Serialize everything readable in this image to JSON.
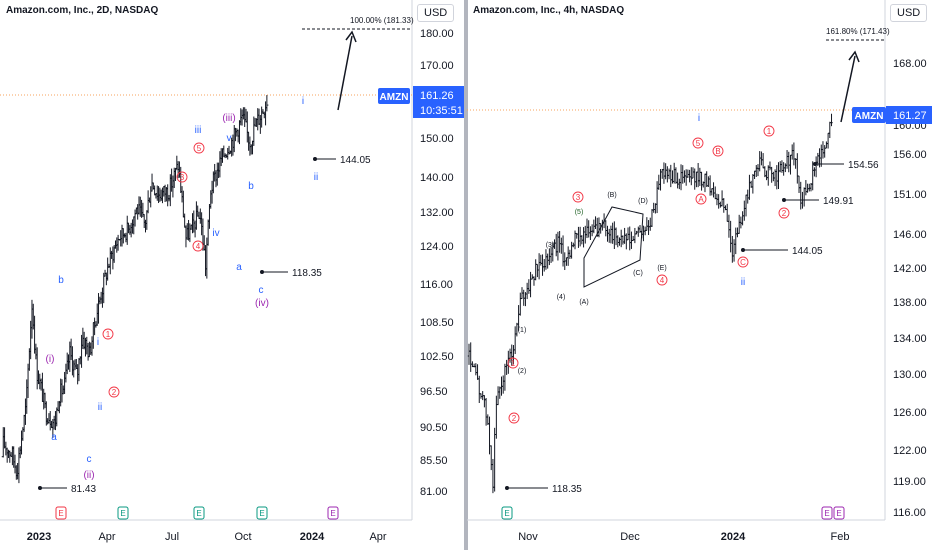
{
  "chart_data": [
    {
      "type": "ohlc",
      "title": "Amazon.com, Inc., 2D, NASDAQ",
      "currency": "USD",
      "ticker": "AMZN",
      "last_price": "161.26",
      "countdown": "10:35:51",
      "y_ticks": [
        "180.00",
        "170.00",
        "160.00",
        "150.00",
        "140.00",
        "132.00",
        "124.00",
        "116.00",
        "108.50",
        "102.50",
        "96.50",
        "90.50",
        "85.50",
        "81.00"
      ],
      "x_ticks": [
        "2023",
        "Apr",
        "Jul",
        "Oct",
        "2024",
        "Apr"
      ],
      "target_label": "100.00% (181.33)",
      "waves": [
        "a",
        "b",
        "c",
        "(i)",
        "(ii)",
        "i",
        "ii",
        "iii",
        "iv",
        "v",
        "(iii)",
        "(iv)",
        "a",
        "b",
        "c",
        "i",
        "ii",
        "1",
        "2",
        "3",
        "4",
        "5"
      ],
      "levels": [
        "81.43",
        "118.35",
        "144.05"
      ],
      "close_path": [
        [
          "2023-01-03",
          86
        ],
        [
          "2023-01-10",
          84
        ],
        [
          "2023-01-17",
          89
        ],
        [
          "2023-01-24",
          94
        ],
        [
          "2023-02-02",
          112
        ],
        [
          "2023-02-09",
          100
        ],
        [
          "2023-02-16",
          97
        ],
        [
          "2023-02-23",
          93
        ],
        [
          "2023-03-02",
          92
        ],
        [
          "2023-03-09",
          91
        ],
        [
          "2023-03-16",
          96
        ],
        [
          "2023-03-23",
          97
        ],
        [
          "2023-04-01",
          103
        ],
        [
          "2023-04-12",
          99
        ],
        [
          "2023-04-20",
          106
        ],
        [
          "2023-05-01",
          103
        ],
        [
          "2023-05-15",
          112
        ],
        [
          "2023-05-30",
          120
        ],
        [
          "2023-06-15",
          126
        ],
        [
          "2023-06-30",
          128
        ],
        [
          "2023-07-13",
          133
        ],
        [
          "2023-07-25",
          129
        ],
        [
          "2023-08-04",
          139
        ],
        [
          "2023-08-15",
          136
        ],
        [
          "2023-08-31",
          137
        ],
        [
          "2023-09-14",
          143
        ],
        [
          "2023-09-26",
          126
        ],
        [
          "2023-10-05",
          128
        ],
        [
          "2023-10-17",
          132
        ],
        [
          "2023-10-26",
          120
        ],
        [
          "2023-11-03",
          137
        ],
        [
          "2023-11-20",
          145
        ],
        [
          "2023-12-08",
          150
        ],
        [
          "2023-12-21",
          155
        ],
        [
          "2024-01-02",
          149
        ],
        [
          "2024-01-10",
          153
        ],
        [
          "2024-01-22",
          157
        ],
        [
          "2024-01-29",
          160
        ]
      ]
    },
    {
      "type": "ohlc",
      "title": "Amazon.com, Inc., 4h, NASDAQ",
      "currency": "USD",
      "ticker": "AMZN",
      "last_price": "161.27",
      "y_ticks": [
        "168.00",
        "160.00",
        "156.00",
        "151.00",
        "146.00",
        "142.00",
        "138.00",
        "134.00",
        "130.00",
        "126.00",
        "122.00",
        "119.00",
        "116.00"
      ],
      "x_ticks": [
        "Nov",
        "Dec",
        "2024",
        "Feb"
      ],
      "target_label": "161.80% (171.43)",
      "waves": [
        "i",
        "ii",
        "1",
        "2",
        "3",
        "4",
        "5",
        "A",
        "B",
        "C",
        "(1)",
        "(2)",
        "(3)",
        "(4)",
        "(5)",
        "(A)",
        "(B)",
        "(C)",
        "(D)",
        "(E)",
        "1",
        "2"
      ],
      "levels": [
        "118.35",
        "154.56",
        "149.91",
        "144.05"
      ],
      "close_path": [
        [
          "2023-10-19",
          132
        ],
        [
          "2023-10-24",
          126
        ],
        [
          "2023-10-26",
          119
        ],
        [
          "2023-10-27",
          127
        ],
        [
          "2023-10-30",
          131
        ],
        [
          "2023-11-01",
          133
        ],
        [
          "2023-11-03",
          138
        ],
        [
          "2023-11-08",
          142
        ],
        [
          "2023-11-10",
          143
        ],
        [
          "2023-11-14",
          145
        ],
        [
          "2023-11-16",
          143
        ],
        [
          "2023-11-20",
          146
        ],
        [
          "2023-11-22",
          146
        ],
        [
          "2023-11-28",
          147
        ],
        [
          "2023-11-30",
          146
        ],
        [
          "2023-12-05",
          145
        ],
        [
          "2023-12-07",
          146
        ],
        [
          "2023-12-11",
          147
        ],
        [
          "2023-12-14",
          154
        ],
        [
          "2023-12-19",
          153
        ],
        [
          "2023-12-22",
          153
        ],
        [
          "2023-12-27",
          153
        ],
        [
          "2024-01-02",
          149
        ],
        [
          "2024-01-04",
          144
        ],
        [
          "2024-01-08",
          150
        ],
        [
          "2024-01-11",
          155
        ],
        [
          "2024-01-16",
          153
        ],
        [
          "2024-01-18",
          154
        ],
        [
          "2024-01-22",
          156
        ],
        [
          "2024-01-24",
          150
        ],
        [
          "2024-01-29",
          155
        ],
        [
          "2024-02-01",
          159
        ],
        [
          "2024-02-02",
          161
        ]
      ]
    }
  ]
}
